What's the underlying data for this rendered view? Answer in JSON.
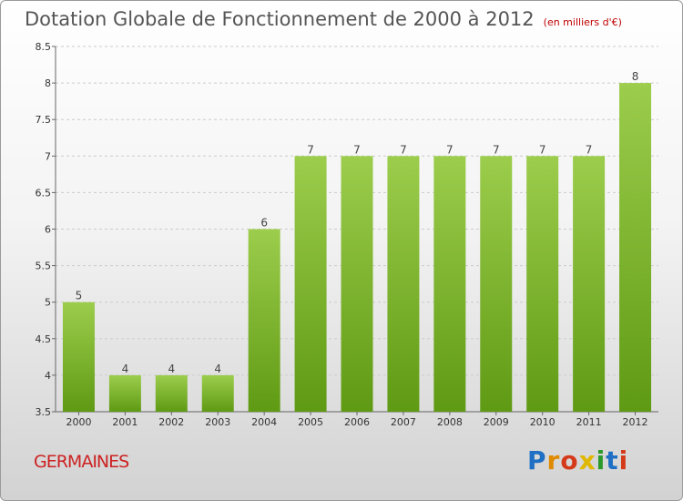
{
  "header": {
    "title": "Dotation Globale de Fonctionnement de 2000 à 2012",
    "unit": "(en milliers d'€)"
  },
  "footer": {
    "commune": "GERMAINES",
    "logo": "Proxiti"
  },
  "colors": {
    "bar_top": "#9ccd4c",
    "bar_bottom": "#5f9a14",
    "grid": "#cccccc",
    "commune_text": "#cc2222"
  },
  "chart_data": {
    "type": "bar",
    "title": "Dotation Globale de Fonctionnement de 2000 à 2012",
    "subtitle": "(en milliers d'€)",
    "xlabel": "",
    "ylabel": "",
    "categories": [
      "2000",
      "2001",
      "2002",
      "2003",
      "2004",
      "2005",
      "2006",
      "2007",
      "2008",
      "2009",
      "2010",
      "2011",
      "2012"
    ],
    "values": [
      5,
      4,
      4,
      4,
      6,
      7,
      7,
      7,
      7,
      7,
      7,
      7,
      8
    ],
    "value_labels": [
      "5",
      "4",
      "4",
      "4",
      "6",
      "7",
      "7",
      "7",
      "7",
      "7",
      "7",
      "7",
      "8"
    ],
    "ylim": [
      3.5,
      8.5
    ],
    "yticks": [
      "3.5",
      "4",
      "4.5",
      "5",
      "5.5",
      "6",
      "6.5",
      "7",
      "7.5",
      "8",
      "8.5"
    ],
    "grid": "horizontal dashed",
    "legend": "none"
  }
}
